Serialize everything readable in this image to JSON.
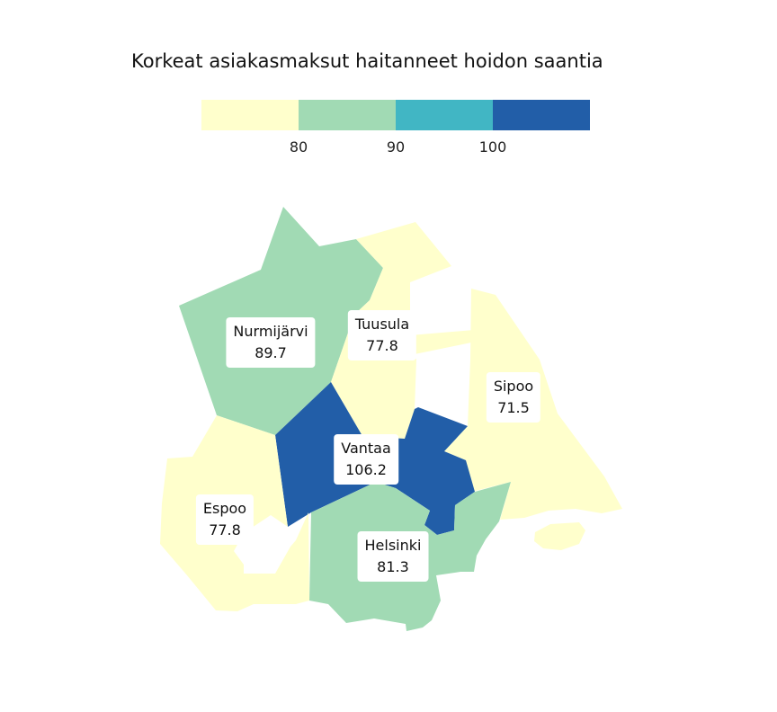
{
  "title": "Korkeat asiakasmaksut haitanneet hoidon saantia",
  "legend": {
    "colors": [
      "#ffffcc",
      "#a1dab4",
      "#41b6c4",
      "#225ea8"
    ],
    "ticks": [
      "80",
      "90",
      "100"
    ]
  },
  "regions": [
    {
      "name": "Nurmijärvi",
      "value": "89.7",
      "color": "#a1dab4"
    },
    {
      "name": "Tuusula",
      "value": "77.8",
      "color": "#ffffcc"
    },
    {
      "name": "Sipoo",
      "value": "71.5",
      "color": "#ffffcc"
    },
    {
      "name": "Vantaa",
      "value": "106.2",
      "color": "#225ea8"
    },
    {
      "name": "Espoo",
      "value": "77.8",
      "color": "#ffffcc"
    },
    {
      "name": "Helsinki",
      "value": "81.3",
      "color": "#a1dab4"
    }
  ]
}
